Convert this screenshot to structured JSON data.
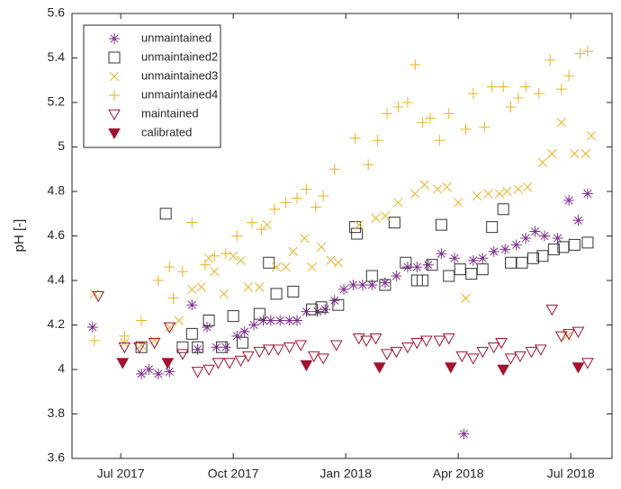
{
  "chart_data": {
    "type": "scatter",
    "ylabel": "pH [-]",
    "xlim": [
      5.7,
      20.1
    ],
    "ylim": [
      3.6,
      5.6
    ],
    "xticks": [
      {
        "value": 7,
        "label": "Jul 2017"
      },
      {
        "value": 10,
        "label": "Oct 2017"
      },
      {
        "value": 13,
        "label": "Jan 2018"
      },
      {
        "value": 16,
        "label": "Apr 2018"
      },
      {
        "value": 19,
        "label": "Jul 2018"
      }
    ],
    "yticks": [
      3.6,
      3.8,
      4,
      4.2,
      4.4,
      4.6,
      4.8,
      5,
      5.2,
      5.4,
      5.6
    ],
    "legend": "top-left",
    "series": [
      {
        "name": "unmaintained",
        "color": "#7e2f8e",
        "marker": "star",
        "x": [
          6.25,
          7.55,
          7.75,
          8.0,
          8.3,
          8.9,
          9.05,
          9.3,
          9.55,
          9.8,
          10.1,
          10.3,
          10.55,
          10.8,
          11.0,
          11.25,
          11.5,
          11.7,
          11.95,
          12.25,
          12.45,
          12.7,
          12.95,
          13.2,
          13.45,
          13.7,
          14.05,
          14.35,
          14.65,
          14.9,
          15.2,
          15.55,
          15.9,
          16.15,
          16.4,
          16.65,
          16.95,
          17.25,
          17.55,
          17.8,
          18.05,
          18.3,
          18.65,
          18.95,
          19.2,
          19.45
        ],
        "values": [
          4.19,
          3.98,
          4.0,
          3.98,
          3.99,
          4.29,
          4.09,
          4.19,
          4.1,
          4.1,
          4.15,
          4.17,
          4.2,
          4.22,
          4.22,
          4.22,
          4.22,
          4.22,
          4.26,
          4.26,
          4.27,
          4.31,
          4.36,
          4.38,
          4.38,
          4.38,
          4.39,
          4.42,
          4.46,
          4.46,
          4.47,
          4.52,
          4.5,
          3.71,
          4.49,
          4.5,
          4.53,
          4.54,
          4.56,
          4.59,
          4.62,
          4.6,
          4.59,
          4.76,
          4.67,
          4.79
        ]
      },
      {
        "name": "unmaintained2",
        "color": "#333333",
        "marker": "square",
        "x": [
          7.55,
          8.2,
          8.65,
          8.9,
          9.05,
          9.35,
          9.7,
          10.0,
          10.25,
          10.7,
          10.95,
          11.15,
          11.6,
          12.1,
          12.35,
          12.8,
          13.25,
          13.3,
          13.7,
          14.05,
          14.3,
          14.6,
          14.9,
          15.05,
          15.3,
          15.55,
          15.75,
          16.05,
          16.35,
          16.65,
          16.9,
          17.2,
          17.4,
          17.7,
          18.0,
          18.25,
          18.55,
          18.8,
          19.1,
          19.45
        ],
        "values": [
          4.1,
          4.7,
          4.1,
          4.16,
          4.1,
          4.22,
          4.1,
          4.24,
          4.12,
          4.25,
          4.48,
          4.34,
          4.35,
          4.27,
          4.28,
          4.29,
          4.64,
          4.61,
          4.42,
          4.38,
          4.66,
          4.48,
          4.4,
          4.4,
          4.47,
          4.65,
          4.42,
          4.45,
          4.43,
          4.45,
          4.64,
          4.72,
          4.48,
          4.48,
          4.5,
          4.51,
          4.54,
          4.55,
          4.56,
          4.57
        ]
      },
      {
        "name": "unmaintained3",
        "color": "#edb120",
        "marker": "x",
        "x": [
          6.3,
          7.1,
          7.55,
          7.9,
          8.3,
          8.55,
          8.9,
          9.15,
          9.35,
          9.5,
          9.75,
          10.0,
          10.2,
          10.4,
          10.7,
          10.9,
          11.15,
          11.4,
          11.6,
          11.9,
          12.1,
          12.35,
          12.6,
          12.8,
          13.35,
          13.8,
          14.05,
          14.4,
          14.85,
          15.1,
          15.45,
          15.7,
          16.0,
          16.2,
          16.5,
          16.8,
          17.1,
          17.3,
          17.6,
          17.85,
          18.25,
          18.5,
          18.75,
          18.9,
          19.1,
          19.4,
          19.55
        ],
        "values": [
          4.34,
          4.12,
          4.11,
          4.13,
          4.19,
          4.22,
          4.36,
          4.37,
          4.5,
          4.44,
          4.34,
          4.51,
          4.49,
          4.37,
          4.37,
          4.65,
          4.46,
          4.46,
          4.53,
          4.59,
          4.46,
          4.55,
          4.49,
          4.48,
          4.65,
          4.68,
          4.69,
          4.75,
          4.79,
          4.83,
          4.81,
          4.82,
          4.75,
          4.32,
          4.78,
          4.79,
          4.79,
          4.8,
          4.81,
          4.82,
          4.93,
          4.97,
          5.11,
          4.15,
          4.97,
          4.97,
          5.05
        ]
      },
      {
        "name": "unmaintained4",
        "color": "#edb120",
        "marker": "plus",
        "x": [
          6.3,
          7.1,
          7.55,
          8.0,
          8.3,
          8.4,
          8.65,
          8.9,
          9.25,
          9.5,
          9.8,
          10.1,
          10.5,
          10.75,
          11.1,
          11.4,
          11.7,
          11.95,
          12.2,
          12.4,
          12.7,
          13.25,
          13.6,
          13.85,
          14.1,
          14.4,
          14.65,
          14.85,
          15.05,
          15.25,
          15.5,
          15.75,
          16.2,
          16.4,
          16.7,
          16.9,
          17.2,
          17.4,
          17.6,
          17.8,
          18.15,
          18.45,
          18.75,
          18.95,
          19.25,
          19.45
        ],
        "values": [
          4.13,
          4.15,
          4.22,
          4.4,
          4.46,
          4.32,
          4.44,
          4.66,
          4.47,
          4.51,
          4.52,
          4.6,
          4.66,
          4.63,
          4.72,
          4.75,
          4.77,
          4.81,
          4.73,
          4.78,
          4.9,
          5.04,
          4.92,
          5.03,
          5.15,
          5.18,
          5.2,
          5.37,
          5.11,
          5.13,
          5.03,
          5.15,
          5.08,
          5.24,
          5.09,
          5.27,
          5.27,
          5.18,
          5.22,
          5.27,
          5.24,
          5.39,
          5.26,
          5.32,
          5.42,
          5.43
        ]
      },
      {
        "name": "maintained",
        "color": "#a2142f",
        "marker": "triangle-down",
        "x": [
          6.4,
          7.1,
          7.5,
          7.9,
          8.3,
          8.65,
          9.05,
          9.35,
          9.6,
          9.9,
          10.2,
          10.4,
          10.7,
          10.95,
          11.2,
          11.5,
          11.8,
          12.15,
          12.4,
          12.75,
          13.35,
          13.55,
          13.8,
          14.1,
          14.35,
          14.65,
          14.9,
          15.15,
          15.5,
          15.75,
          16.1,
          16.4,
          16.65,
          16.95,
          17.15,
          17.4,
          17.65,
          17.95,
          18.2,
          18.5,
          18.75,
          18.95,
          19.2,
          19.45
        ],
        "values": [
          4.33,
          4.1,
          4.1,
          4.12,
          4.19,
          4.07,
          3.99,
          4.0,
          4.03,
          4.03,
          4.04,
          4.06,
          4.08,
          4.09,
          4.09,
          4.1,
          4.11,
          4.06,
          4.05,
          4.11,
          4.14,
          4.13,
          4.14,
          4.07,
          4.08,
          4.1,
          4.12,
          4.13,
          4.13,
          4.14,
          4.06,
          4.05,
          4.08,
          4.1,
          4.12,
          4.05,
          4.06,
          4.08,
          4.09,
          4.27,
          4.15,
          4.16,
          4.17,
          4.03
        ]
      },
      {
        "name": "calibrated",
        "color": "#a2142f",
        "marker": "triangle-down-filled",
        "x": [
          7.05,
          8.25,
          11.95,
          13.9,
          15.8,
          17.2,
          19.2
        ],
        "values": [
          4.03,
          4.03,
          4.02,
          4.01,
          4.01,
          4.0,
          4.01
        ]
      }
    ]
  }
}
